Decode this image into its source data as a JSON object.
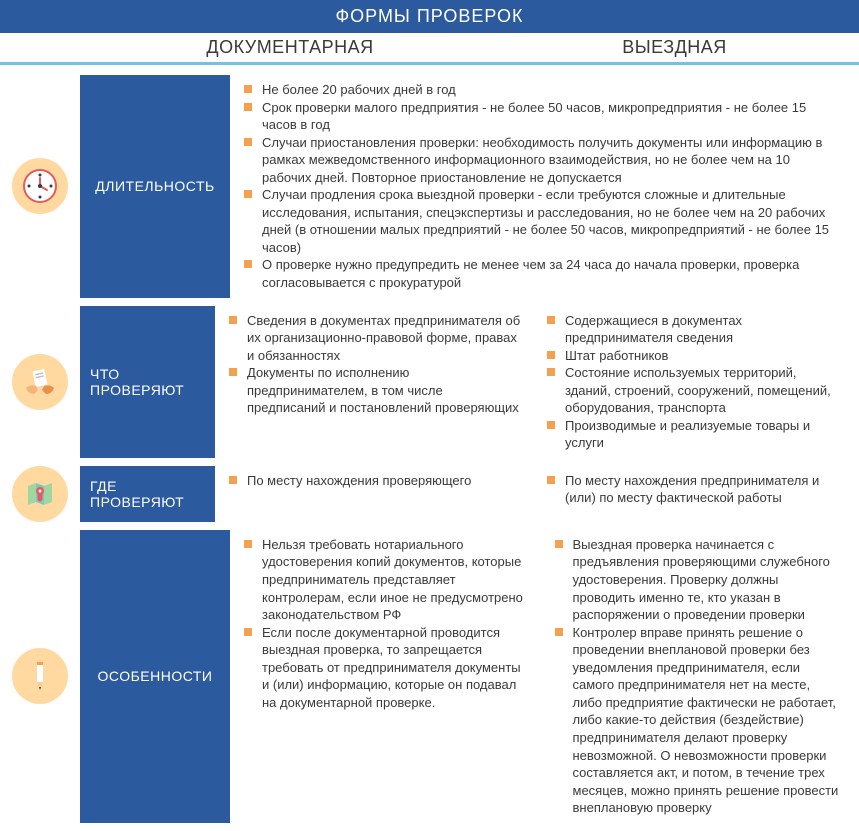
{
  "colors": {
    "header_bg": "#2b5a9e",
    "accent_bar": "#6ec4e8",
    "bullet": "#f5a04e",
    "icon_bg": "#ffd9a0",
    "text": "#3a3a3a",
    "white": "#ffffff"
  },
  "header": {
    "title": "ФОРМЫ ПРОВЕРОК",
    "col1": "ДОКУМЕНТАРНАЯ",
    "col2": "ВЫЕЗДНАЯ"
  },
  "rows": [
    {
      "icon": "clock",
      "label": "ДЛИТЕЛЬНОСТЬ",
      "label_width": 150,
      "split": false,
      "items": [
        "Не более 20 рабочих дней в год",
        "Срок проверки малого предприятия - не более 50 часов, микропредприятия - не более 15 часов в год",
        "Случаи приостановления проверки: необходимость получить документы или информацию в рамках межведомственного информационного взаимодействия, но не более чем на 10 рабочих дней. Повторное приостановление не допускается",
        "Случаи продления срока выездной проверки - если требуются сложные и длительные исследования, испытания, спецэкспертизы и расследования, но не более чем на 20 рабочих дней (в отношении малых предприятий - не более 50 часов, микропредприятий - не более 15 часов)",
        "О проверке нужно предупредить не менее чем за 24 часа до начала проверки, проверка согласовывается с прокуратурой"
      ]
    },
    {
      "icon": "hands",
      "label": "ЧТО ПРОВЕРЯЮТ",
      "label_width": 135,
      "split": true,
      "left_items": [
        "Сведения в документах предпринимателя об их организационно-правовой форме, правах и обязанностях",
        "Документы по исполнению предпринимателем, в том числе предписаний и постановлений проверяющих"
      ],
      "right_items": [
        "Содержащиеся в документах предпринимателя сведения",
        "Штат работников",
        "Состояние используемых территорий, зданий, строений, сооружений, помещений, оборудования, транспорта",
        "Производимые и реализуемые товары и услуги"
      ]
    },
    {
      "icon": "map",
      "label": "ГДЕ ПРОВЕРЯЮТ",
      "label_width": 135,
      "split": true,
      "left_items": [
        "По месту нахождения проверяющего"
      ],
      "right_items": [
        "По месту нахождения предпринимателя и (или) по месту фактической работы"
      ]
    },
    {
      "icon": "pencil",
      "label": "ОСОБЕННОСТИ",
      "label_width": 150,
      "split": true,
      "left_items": [
        "Нельзя требовать нотариального удостоверения копий документов, которые предприниматель представляет контролерам, если иное не предусмотрено законодательством РФ",
        "Если после документарной проводится выездная проверка, то запрещается требовать от предпринимателя документы и (или) информацию, которые он подавал на документарной проверке."
      ],
      "right_items": [
        "Выездная проверка начинается с предъявления проверяющими служебного удостоверения. Проверку должны проводить именно те, кто указан в распоряжении о проведении проверки",
        "Контролер вправе принять решение о проведении внеплановой проверки без уведомления предпринимателя, если самого предпринимателя нет на месте, либо предприятие фактически не работает, либо какие-то действия (бездействие) предпринимателя делают проверку невозможной. О невозможности проверки составляется акт, и потом, в течение трех месяцев, можно принять решение провести внеплановую проверку"
      ]
    }
  ]
}
